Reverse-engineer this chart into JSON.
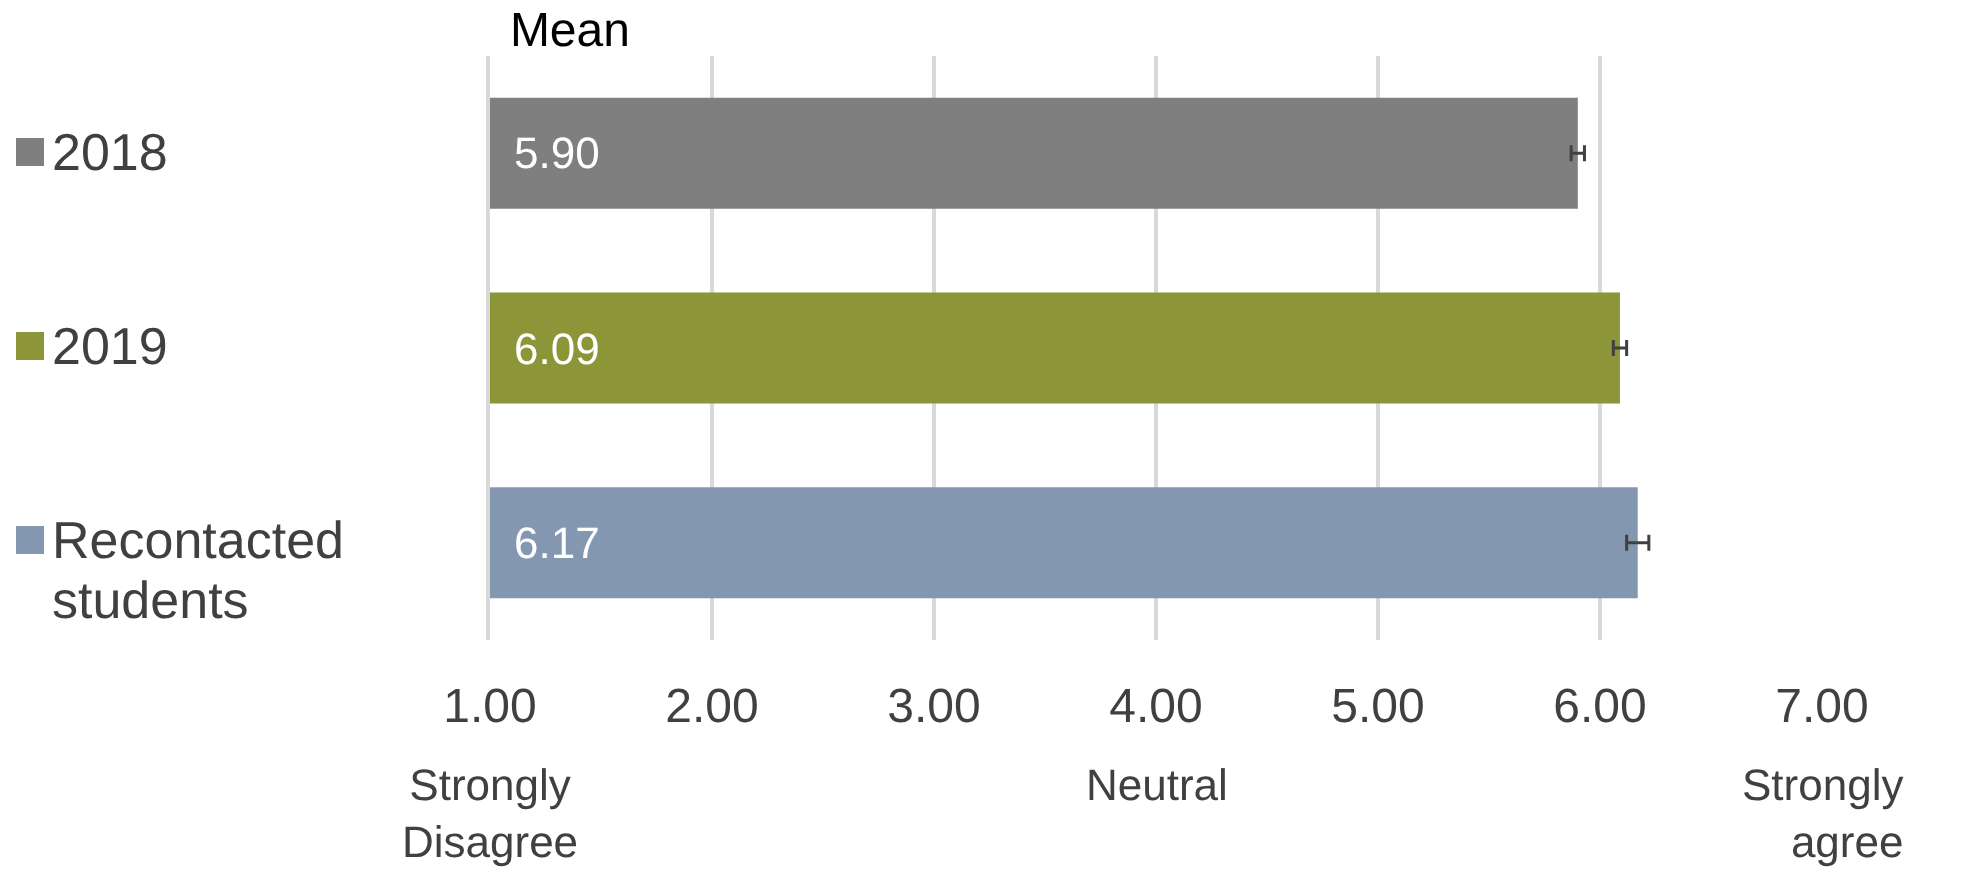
{
  "chart_data": {
    "type": "bar",
    "orientation": "horizontal",
    "title": "Mean",
    "categories": [
      null,
      null,
      null
    ],
    "series": [
      {
        "name": "2018",
        "color": "#7f7f7f",
        "values": [
          5.9,
          null,
          null
        ],
        "value_labels": [
          "5.90",
          null,
          null
        ],
        "errors": [
          0.03,
          null,
          null
        ]
      },
      {
        "name": "2019",
        "color": "#8c9638",
        "values": [
          null,
          6.09,
          null
        ],
        "value_labels": [
          null,
          "6.09",
          null
        ],
        "errors": [
          null,
          0.03,
          null
        ]
      },
      {
        "name": "Recontacted students",
        "color": "#8497b0",
        "values": [
          null,
          null,
          6.17
        ],
        "value_labels": [
          null,
          null,
          "6.17"
        ],
        "errors": [
          null,
          null,
          0.05
        ]
      }
    ],
    "xlim": [
      1,
      7
    ],
    "xticks": [
      {
        "value": 1,
        "label": "1.00"
      },
      {
        "value": 2,
        "label": "2.00"
      },
      {
        "value": 3,
        "label": "3.00"
      },
      {
        "value": 4,
        "label": "4.00"
      },
      {
        "value": 5,
        "label": "5.00"
      },
      {
        "value": 6,
        "label": "6.00"
      },
      {
        "value": 7,
        "label": "7.00"
      }
    ],
    "grid": "x",
    "legend": "left",
    "tick_labels": "x",
    "annotations": [
      "Strongly Disagree",
      "Neutral",
      "Strongly agree"
    ]
  }
}
